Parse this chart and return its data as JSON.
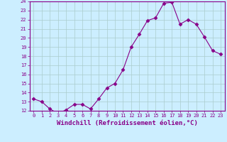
{
  "x": [
    0,
    1,
    2,
    3,
    4,
    5,
    6,
    7,
    8,
    9,
    10,
    11,
    12,
    13,
    14,
    15,
    16,
    17,
    18,
    19,
    20,
    21,
    22,
    23
  ],
  "y": [
    13.3,
    13.0,
    12.2,
    11.7,
    12.1,
    12.7,
    12.7,
    12.2,
    13.3,
    14.5,
    15.0,
    16.5,
    19.0,
    20.4,
    21.9,
    22.2,
    23.8,
    23.9,
    21.5,
    22.0,
    21.5,
    20.1,
    18.6,
    18.2
  ],
  "line_color": "#880088",
  "marker": "D",
  "marker_size": 2.5,
  "bg_color": "#cceeff",
  "grid_color": "#aacccc",
  "xlabel": "Windchill (Refroidissement éolien,°C)",
  "title": "",
  "ylim": [
    12,
    24
  ],
  "xlim": [
    -0.5,
    23.5
  ],
  "yticks": [
    12,
    13,
    14,
    15,
    16,
    17,
    18,
    19,
    20,
    21,
    22,
    23,
    24
  ],
  "xticks": [
    0,
    1,
    2,
    3,
    4,
    5,
    6,
    7,
    8,
    9,
    10,
    11,
    12,
    13,
    14,
    15,
    16,
    17,
    18,
    19,
    20,
    21,
    22,
    23
  ],
  "tick_color": "#880088",
  "tick_fontsize": 5.0,
  "xlabel_fontsize": 6.5,
  "xlabel_color": "#880088",
  "axis_color": "#880088"
}
